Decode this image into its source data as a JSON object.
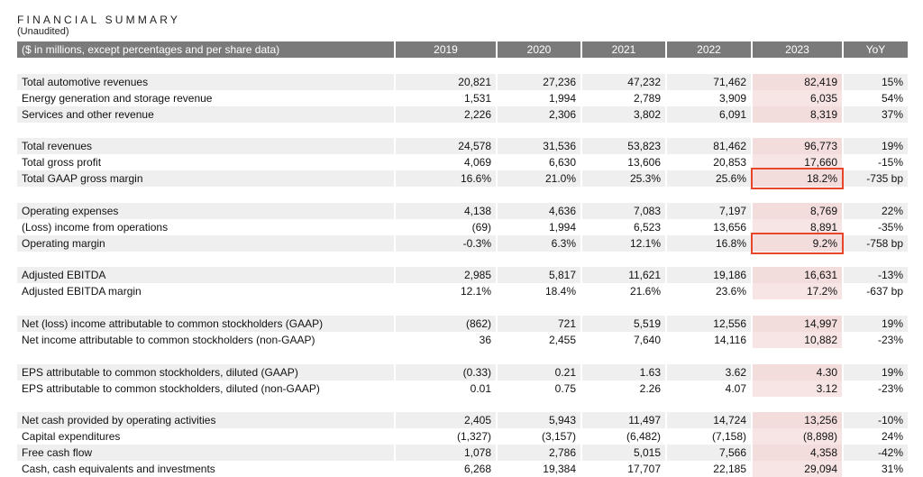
{
  "title": "FINANCIAL SUMMARY",
  "subtitle": "(Unaudited)",
  "header": {
    "label": "($ in millions, except percentages and per share data)",
    "years": [
      "2019",
      "2020",
      "2021",
      "2022",
      "2023"
    ],
    "yoy": "YoY"
  },
  "groups": [
    [
      {
        "label": "Total automotive revenues",
        "values": [
          "20,821",
          "27,236",
          "47,232",
          "71,462",
          "82,419"
        ],
        "yoy": "15%"
      },
      {
        "label": "Energy generation and storage revenue",
        "values": [
          "1,531",
          "1,994",
          "2,789",
          "3,909",
          "6,035"
        ],
        "yoy": "54%"
      },
      {
        "label": "Services and other revenue",
        "values": [
          "2,226",
          "2,306",
          "3,802",
          "6,091",
          "8,319"
        ],
        "yoy": "37%"
      }
    ],
    [
      {
        "label": "Total revenues",
        "values": [
          "24,578",
          "31,536",
          "53,823",
          "81,462",
          "96,773"
        ],
        "yoy": "19%"
      },
      {
        "label": "Total gross profit",
        "values": [
          "4,069",
          "6,630",
          "13,606",
          "20,853",
          "17,660"
        ],
        "yoy": "-15%"
      },
      {
        "label": "Total GAAP gross margin",
        "values": [
          "16.6%",
          "21.0%",
          "25.3%",
          "25.6%",
          "18.2%"
        ],
        "yoy": "-735 bp",
        "highlight": true
      }
    ],
    [
      {
        "label": "Operating expenses",
        "values": [
          "4,138",
          "4,636",
          "7,083",
          "7,197",
          "8,769"
        ],
        "yoy": "22%"
      },
      {
        "label": "(Loss) income from operations",
        "values": [
          "(69)",
          "1,994",
          "6,523",
          "13,656",
          "8,891"
        ],
        "yoy": "-35%"
      },
      {
        "label": "Operating margin",
        "values": [
          "-0.3%",
          "6.3%",
          "12.1%",
          "16.8%",
          "9.2%"
        ],
        "yoy": "-758 bp",
        "highlight": true
      }
    ],
    [
      {
        "label": "Adjusted EBITDA",
        "values": [
          "2,985",
          "5,817",
          "11,621",
          "19,186",
          "16,631"
        ],
        "yoy": "-13%"
      },
      {
        "label": "Adjusted EBITDA margin",
        "values": [
          "12.1%",
          "18.4%",
          "21.6%",
          "23.6%",
          "17.2%"
        ],
        "yoy": "-637 bp"
      }
    ],
    [
      {
        "label": "Net (loss) income attributable to common stockholders (GAAP)",
        "values": [
          "(862)",
          "721",
          "5,519",
          "12,556",
          "14,997"
        ],
        "yoy": "19%"
      },
      {
        "label": "Net income attributable to common stockholders (non-GAAP)",
        "values": [
          "36",
          "2,455",
          "7,640",
          "14,116",
          "10,882"
        ],
        "yoy": "-23%"
      }
    ],
    [
      {
        "label": "EPS attributable to common stockholders, diluted (GAAP)",
        "values": [
          "(0.33)",
          "0.21",
          "1.63",
          "3.62",
          "4.30"
        ],
        "yoy": "19%"
      },
      {
        "label": "EPS attributable to common stockholders, diluted (non-GAAP)",
        "values": [
          "0.01",
          "0.75",
          "2.26",
          "4.07",
          "3.12"
        ],
        "yoy": "-23%"
      }
    ],
    [
      {
        "label": "Net cash provided by operating activities",
        "values": [
          "2,405",
          "5,943",
          "11,497",
          "14,724",
          "13,256"
        ],
        "yoy": "-10%"
      },
      {
        "label": "Capital expenditures",
        "values": [
          "(1,327)",
          "(3,157)",
          "(6,482)",
          "(7,158)",
          "(8,898)"
        ],
        "yoy": "24%"
      },
      {
        "label": "Free cash flow",
        "values": [
          "1,078",
          "2,786",
          "5,015",
          "7,566",
          "4,358"
        ],
        "yoy": "-42%"
      },
      {
        "label": "Cash, cash equivalents and investments",
        "values": [
          "6,268",
          "19,384",
          "17,707",
          "22,185",
          "29,094"
        ],
        "yoy": "31%"
      }
    ]
  ],
  "colors": {
    "header_bg": "#7a7a7a",
    "row_shade": "#efefef",
    "highlight_col": "#f2dcdc",
    "highlight_box": "#e8462a"
  }
}
